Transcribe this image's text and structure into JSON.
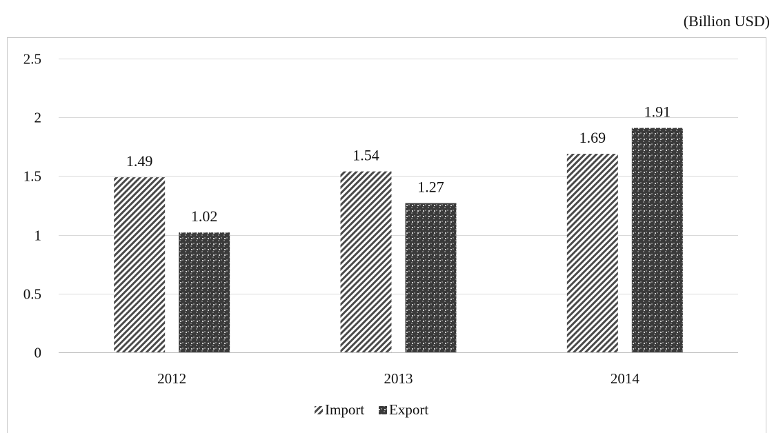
{
  "unit_label": "(Billion USD)",
  "chart_data": {
    "type": "bar",
    "categories": [
      "2012",
      "2013",
      "2014"
    ],
    "series": [
      {
        "name": "Import",
        "values": [
          1.49,
          1.54,
          1.69
        ],
        "pattern": "diagonal-hatch"
      },
      {
        "name": "Export",
        "values": [
          1.02,
          1.27,
          1.91
        ],
        "pattern": "dotted-dark"
      }
    ],
    "ylim": [
      0,
      2.5
    ],
    "yticks": [
      0,
      0.5,
      1,
      1.5,
      2,
      2.5
    ],
    "ytick_labels": [
      "0",
      "0.5",
      "1",
      "1.5",
      "2",
      "2.5"
    ],
    "data_labels": [
      [
        "1.49",
        "1.54",
        "1.69"
      ],
      [
        "1.02",
        "1.27",
        "1.91"
      ]
    ],
    "grid": true,
    "legend_position": "bottom",
    "colors": {
      "axis": "#bfbfbf",
      "grid": "#d9d9d9",
      "hatch": "#4a4a4a",
      "dots": "#3a3a3a",
      "frame": "#c8c8c8"
    }
  }
}
